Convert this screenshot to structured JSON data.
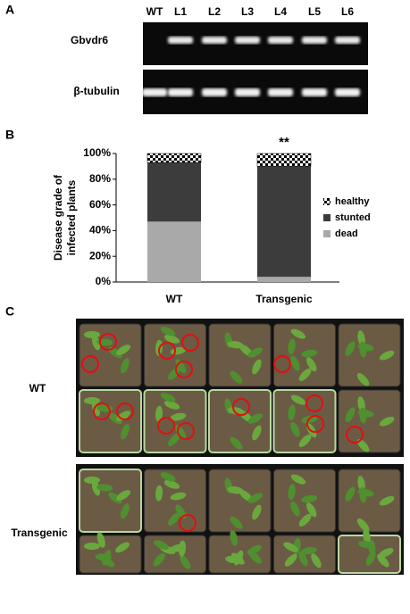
{
  "panel_a": {
    "label": "A",
    "lanes": [
      "WT",
      "L1",
      "L2",
      "L3",
      "L4",
      "L5",
      "L6"
    ],
    "genes": [
      "Gbvdr6",
      "β-tubulin"
    ]
  },
  "panel_b": {
    "label": "B"
  },
  "chart_data": {
    "type": "stacked_bar",
    "categories": [
      "WT",
      "Transgenic"
    ],
    "ylabel": [
      "Disease grade of",
      "infected plants"
    ],
    "series": [
      {
        "name": "healthy",
        "color": "#000000",
        "pattern": "checkerboard",
        "values": [
          7,
          10
        ]
      },
      {
        "name": "stunted",
        "color": "#3c3c3c",
        "values": [
          46,
          86
        ]
      },
      {
        "name": "dead",
        "color": "#a9a9a9",
        "values": [
          47,
          4
        ]
      }
    ],
    "annotations": [
      "",
      "**"
    ],
    "ylim": [
      0,
      100
    ],
    "yticks": [
      {
        "value": 0,
        "label": "0%"
      },
      {
        "value": 20,
        "label": "20%"
      },
      {
        "value": 40,
        "label": "40%"
      },
      {
        "value": 60,
        "label": "60%"
      },
      {
        "value": 80,
        "label": "80%"
      },
      {
        "value": 100,
        "label": "100%"
      }
    ],
    "legend": "right"
  },
  "panel_c": {
    "label": "C",
    "groups": [
      "WT",
      "Transgenic"
    ]
  }
}
